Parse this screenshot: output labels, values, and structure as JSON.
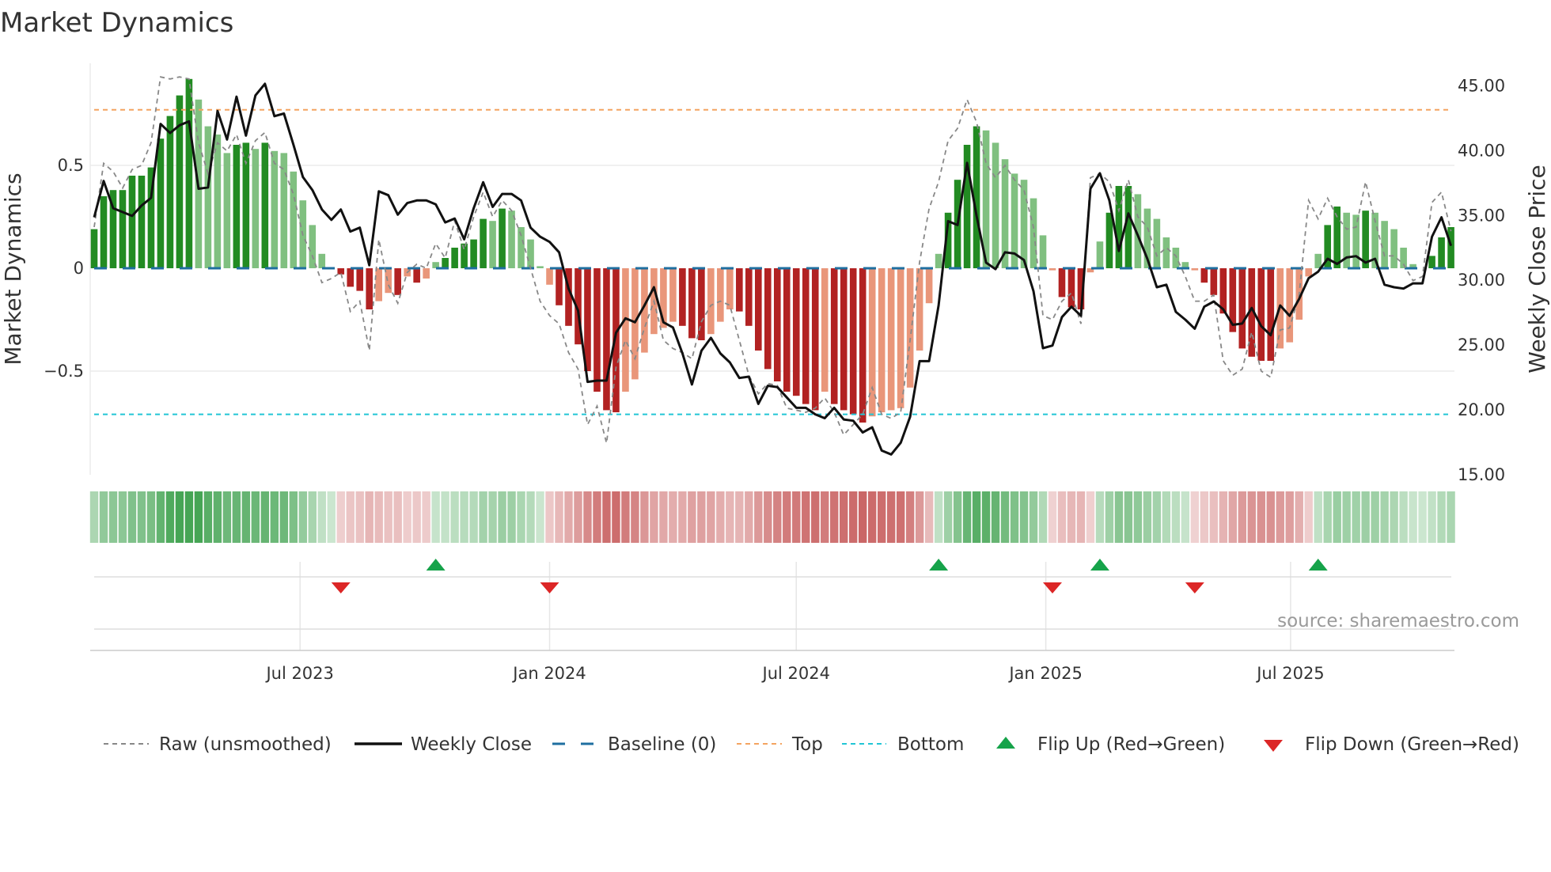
{
  "title": "Market Dynamics",
  "source": "source: sharemaestro.com",
  "colors": {
    "dark_green": "#228b22",
    "light_green": "#80c080",
    "dark_red": "#b22222",
    "light_red": "#e9967a",
    "baseline": "#1f6fa0",
    "top": "#f4a460",
    "bottom": "#22c5d5",
    "weekly_close": "#111111",
    "raw": "#888888",
    "flip_up": "#16a34a",
    "flip_down": "#dc2626"
  },
  "legend": {
    "raw": "Raw (unsmoothed)",
    "close": "Weekly Close",
    "baseline": "Baseline (0)",
    "top": "Top",
    "bottom": "Bottom",
    "flip_up": "Flip Up (Red→Green)",
    "flip_down": "Flip Down (Green→Red)"
  },
  "chart_data": {
    "type": "bar",
    "title": "Market Dynamics",
    "ylabel": "Market Dynamics",
    "y2label": "Weekly Close Price",
    "ylim": [
      -1.03,
      1.0
    ],
    "y2lim": [
      15,
      47
    ],
    "y_ticks": [
      {
        "v": 0.5,
        "label": "0.5"
      },
      {
        "v": 0,
        "label": "0"
      },
      {
        "v": -0.5,
        "label": "−0.5"
      }
    ],
    "y2_ticks": [
      "45.00",
      "40.00",
      "35.00",
      "30.00",
      "25.00",
      "20.00",
      "15.00"
    ],
    "x_unit": "week index",
    "x_ticks": [
      {
        "label": "Jul 2023",
        "at": 21.7
      },
      {
        "label": "Jan 2024",
        "at": 48.0
      },
      {
        "label": "Jul 2024",
        "at": 74.0
      },
      {
        "label": "Jan 2025",
        "at": 100.3
      },
      {
        "label": "Jul 2025",
        "at": 126.1
      }
    ],
    "top_level": 0.77,
    "bottom_level": -0.71,
    "baseline": 0,
    "legend_position": "bottom",
    "grid": true,
    "dynamics": [
      0.19,
      0.35,
      0.38,
      0.38,
      0.45,
      0.45,
      0.49,
      0.63,
      0.74,
      0.84,
      0.92,
      0.82,
      0.69,
      0.65,
      0.56,
      0.6,
      0.61,
      0.58,
      0.61,
      0.57,
      0.56,
      0.47,
      0.33,
      0.21,
      0.07,
      0.0,
      -0.03,
      -0.09,
      -0.11,
      -0.2,
      -0.16,
      -0.12,
      -0.13,
      -0.04,
      -0.07,
      -0.05,
      0.03,
      0.05,
      0.1,
      0.12,
      0.14,
      0.24,
      0.23,
      0.29,
      0.28,
      0.2,
      0.14,
      0.01,
      -0.08,
      -0.18,
      -0.28,
      -0.37,
      -0.5,
      -0.6,
      -0.69,
      -0.7,
      -0.6,
      -0.54,
      -0.41,
      -0.32,
      -0.29,
      -0.26,
      -0.28,
      -0.34,
      -0.35,
      -0.32,
      -0.26,
      -0.2,
      -0.21,
      -0.28,
      -0.4,
      -0.49,
      -0.55,
      -0.6,
      -0.62,
      -0.66,
      -0.69,
      -0.6,
      -0.66,
      -0.69,
      -0.71,
      -0.75,
      -0.72,
      -0.7,
      -0.69,
      -0.68,
      -0.58,
      -0.4,
      -0.17,
      0.07,
      0.27,
      0.43,
      0.6,
      0.69,
      0.67,
      0.61,
      0.53,
      0.46,
      0.43,
      0.34,
      0.16,
      -0.01,
      -0.14,
      -0.19,
      -0.2,
      -0.02,
      0.13,
      0.27,
      0.4,
      0.4,
      0.36,
      0.29,
      0.24,
      0.15,
      0.1,
      0.03,
      -0.01,
      -0.07,
      -0.13,
      -0.22,
      -0.31,
      -0.39,
      -0.43,
      -0.45,
      -0.45,
      -0.39,
      -0.36,
      -0.25,
      -0.04,
      0.07,
      0.21,
      0.3,
      0.27,
      0.26,
      0.28,
      0.27,
      0.23,
      0.19,
      0.1,
      0.02,
      0.0,
      0.06,
      0.15,
      0.2
    ],
    "raw": [
      0.2,
      0.51,
      0.47,
      0.39,
      0.48,
      0.5,
      0.61,
      0.93,
      0.92,
      0.93,
      0.92,
      0.61,
      0.46,
      0.61,
      0.57,
      0.65,
      0.51,
      0.62,
      0.66,
      0.51,
      0.48,
      0.36,
      0.16,
      0.06,
      -0.07,
      -0.05,
      -0.02,
      -0.21,
      -0.16,
      -0.4,
      0.14,
      -0.08,
      -0.17,
      -0.02,
      0.02,
      0.0,
      0.12,
      0.05,
      0.23,
      0.09,
      0.25,
      0.37,
      0.25,
      0.33,
      0.28,
      0.16,
      0.0,
      -0.16,
      -0.23,
      -0.27,
      -0.41,
      -0.49,
      -0.76,
      -0.67,
      -0.85,
      -0.48,
      -0.35,
      -0.44,
      -0.29,
      -0.16,
      -0.35,
      -0.39,
      -0.41,
      -0.44,
      -0.26,
      -0.18,
      -0.16,
      -0.18,
      -0.35,
      -0.52,
      -0.61,
      -0.56,
      -0.57,
      -0.68,
      -0.69,
      -0.7,
      -0.68,
      -0.63,
      -0.7,
      -0.81,
      -0.76,
      -0.71,
      -0.58,
      -0.71,
      -0.73,
      -0.7,
      -0.35,
      0.03,
      0.29,
      0.42,
      0.62,
      0.68,
      0.82,
      0.71,
      0.51,
      0.44,
      0.5,
      0.43,
      0.38,
      0.2,
      -0.23,
      -0.25,
      -0.16,
      -0.12,
      -0.27,
      0.44,
      0.46,
      0.42,
      0.28,
      0.43,
      0.25,
      0.2,
      0.06,
      0.1,
      0.06,
      -0.04,
      -0.16,
      -0.16,
      -0.13,
      -0.45,
      -0.52,
      -0.49,
      -0.31,
      -0.5,
      -0.53,
      -0.3,
      -0.29,
      -0.13,
      0.33,
      0.24,
      0.34,
      0.25,
      0.19,
      0.2,
      0.42,
      0.23,
      0.06,
      0.06,
      0.02,
      -0.06,
      -0.04,
      0.32,
      0.37,
      0.18
    ],
    "weekly_close": [
      34.8,
      37.6,
      35.5,
      35.2,
      34.9,
      35.7,
      36.3,
      42.0,
      41.3,
      41.9,
      42.2,
      37.0,
      37.1,
      43.0,
      40.8,
      44.1,
      41.1,
      44.2,
      45.1,
      42.6,
      42.8,
      40.4,
      37.9,
      36.9,
      35.4,
      34.6,
      35.4,
      33.7,
      34.0,
      31.1,
      36.8,
      36.5,
      35.0,
      35.9,
      36.1,
      36.1,
      35.8,
      34.4,
      34.7,
      33.1,
      35.5,
      37.5,
      35.6,
      36.6,
      36.6,
      36.1,
      34.0,
      33.3,
      32.9,
      32.1,
      29.3,
      27.6,
      22.1,
      22.2,
      22.2,
      25.9,
      27.0,
      26.7,
      28.0,
      29.4,
      26.7,
      26.3,
      24.3,
      21.9,
      24.5,
      25.5,
      24.3,
      23.6,
      22.4,
      22.5,
      20.4,
      21.8,
      21.7,
      20.9,
      20.1,
      20.1,
      19.6,
      19.3,
      20.1,
      19.2,
      19.1,
      18.2,
      18.6,
      16.8,
      16.5,
      17.4,
      19.4,
      23.7,
      23.7,
      28.0,
      34.5,
      34.2,
      39.0,
      34.9,
      31.3,
      30.8,
      32.1,
      32.0,
      31.5,
      29.1,
      24.7,
      24.9,
      27.1,
      27.9,
      27.2,
      37.0,
      38.2,
      36.1,
      32.2,
      35.1,
      33.4,
      31.6,
      29.4,
      29.6,
      27.5,
      26.9,
      26.2,
      27.9,
      28.3,
      27.7,
      26.5,
      26.6,
      27.8,
      26.4,
      25.7,
      28.0,
      27.2,
      28.5,
      30.1,
      30.6,
      31.6,
      31.2,
      31.7,
      31.8,
      31.3,
      31.6,
      29.6,
      29.4,
      29.3,
      29.7,
      29.7,
      33.3,
      34.8,
      32.6
    ],
    "flip_up_weeks": [
      36,
      89,
      106,
      129
    ],
    "flip_down_weeks": [
      26,
      48,
      101,
      116
    ]
  }
}
